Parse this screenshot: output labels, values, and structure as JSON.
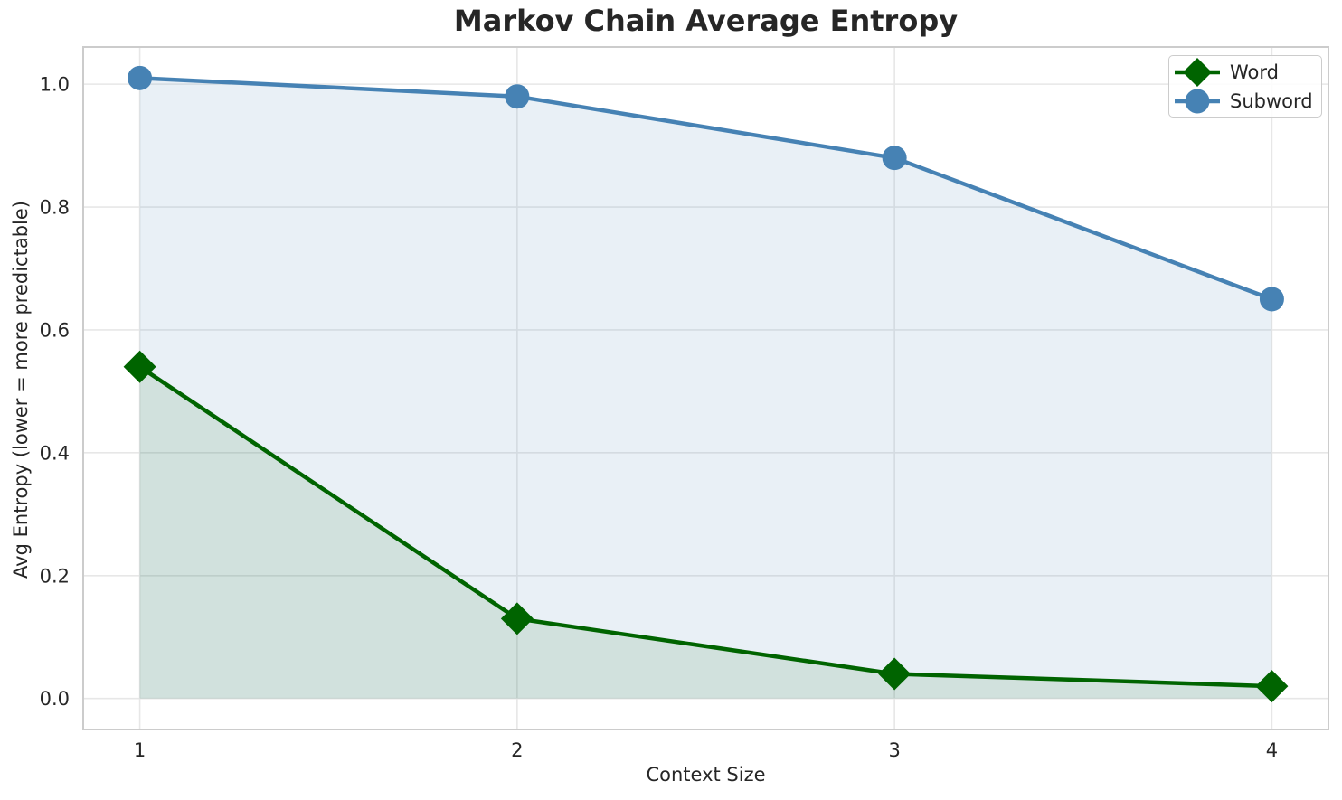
{
  "chart_data": {
    "type": "line",
    "title": "Markov Chain Average Entropy",
    "xlabel": "Context Size",
    "ylabel": "Avg Entropy (lower = more predictable)",
    "x": [
      1,
      2,
      3,
      4
    ],
    "series": [
      {
        "name": "Word",
        "values": [
          0.54,
          0.13,
          0.04,
          0.02
        ],
        "color": "#006400",
        "fill": "rgba(0,100,0,0.10)",
        "marker": "diamond"
      },
      {
        "name": "Subword",
        "values": [
          1.01,
          0.98,
          0.88,
          0.65
        ],
        "color": "#4682B4",
        "fill": "rgba(70,130,180,0.12)",
        "marker": "circle"
      }
    ],
    "fill_baseline": 0,
    "xlim": [
      0.85,
      4.15
    ],
    "ylim": [
      -0.0505,
      1.0605
    ],
    "xticks": [
      {
        "v": 1,
        "label": "1"
      },
      {
        "v": 2,
        "label": "2"
      },
      {
        "v": 3,
        "label": "3"
      },
      {
        "v": 4,
        "label": "4"
      }
    ],
    "yticks": [
      {
        "v": 0.0,
        "label": "0.0"
      },
      {
        "v": 0.2,
        "label": "0.2"
      },
      {
        "v": 0.4,
        "label": "0.4"
      },
      {
        "v": 0.6,
        "label": "0.6"
      },
      {
        "v": 0.8,
        "label": "0.8"
      },
      {
        "v": 1.0,
        "label": "1.0"
      }
    ],
    "grid": true,
    "legend_position": "top-right",
    "colors": {
      "grid": "#e7e7e7",
      "spine": "#cccccc",
      "text": "#262626"
    }
  }
}
